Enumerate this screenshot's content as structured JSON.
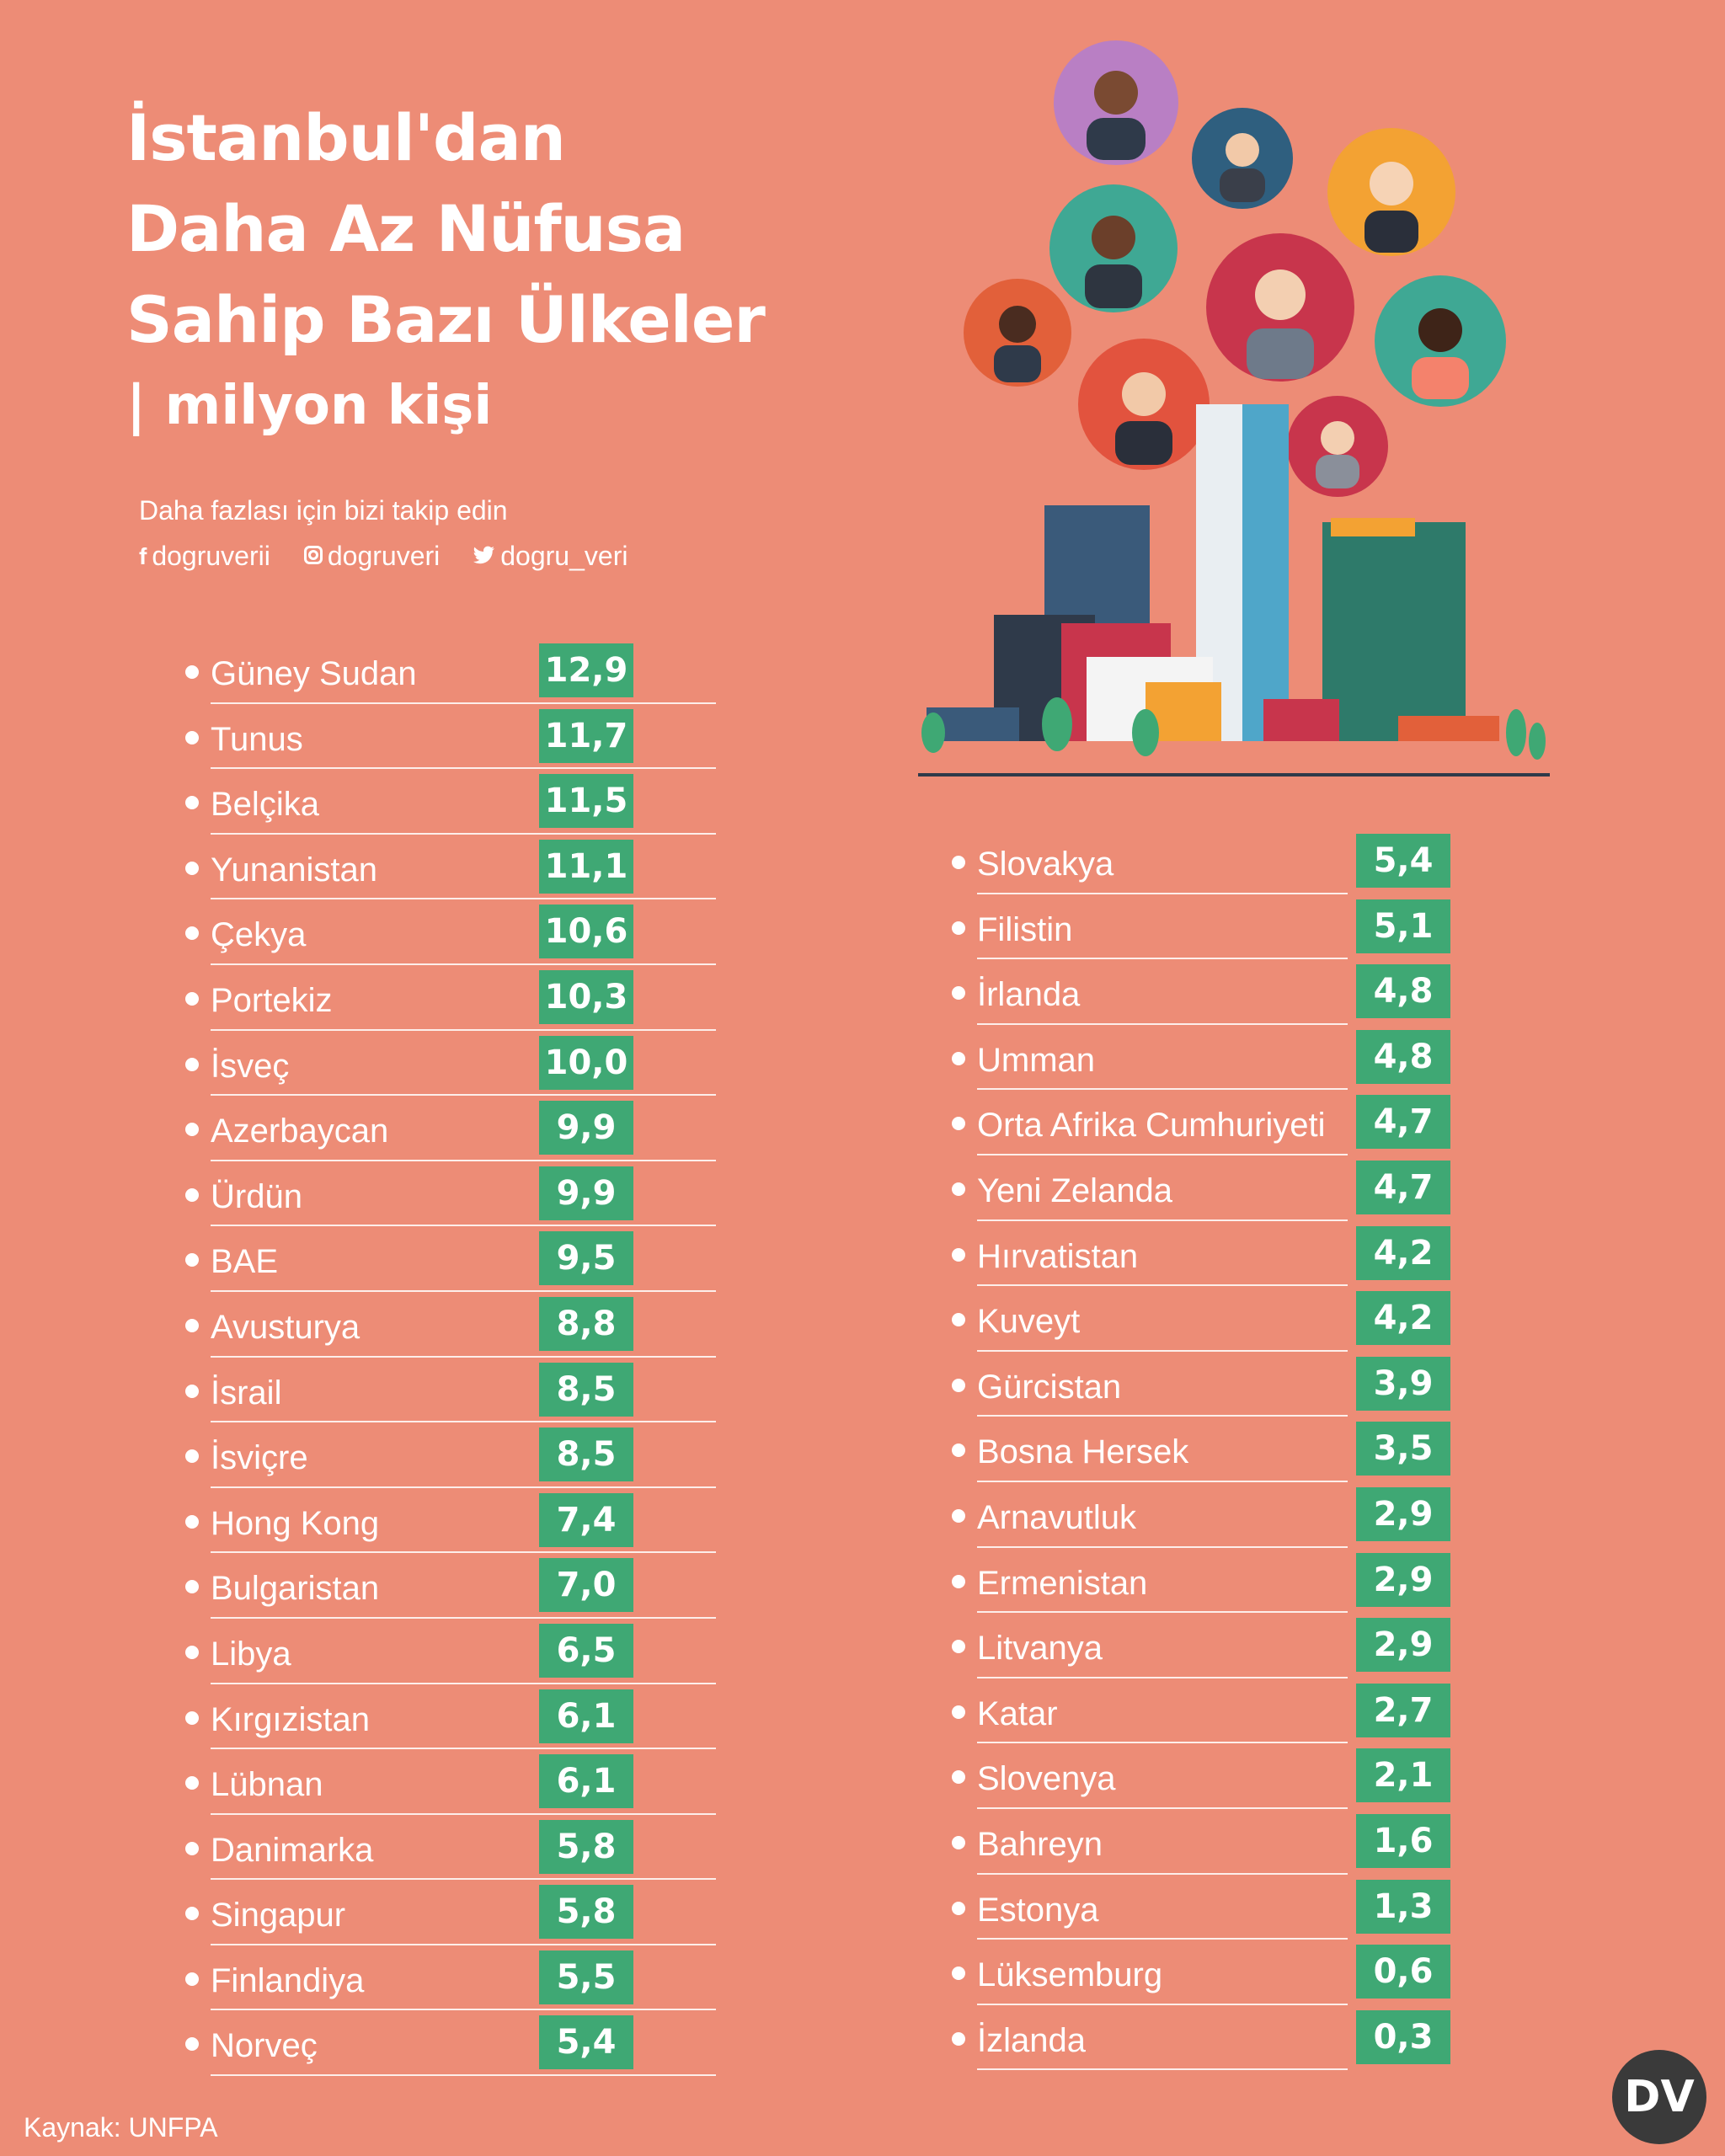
{
  "title": {
    "line1": "İstanbul'dan",
    "line2": "Daha Az Nüfusa",
    "line3": "Sahip Bazı Ülkeler",
    "line4": "| milyon kişi"
  },
  "follow": {
    "text": "Daha fazlası için bizi takip edin",
    "facebook": "dogruverii",
    "instagram": "dogruveri",
    "twitter": "dogru_veri"
  },
  "source": "Kaynak: UNFPA",
  "logo": "DV",
  "colors": {
    "background": "#ED8C76",
    "value_box": "#3FA874",
    "text": "#FFFFFF"
  },
  "chart_data": {
    "type": "table",
    "title": "İstanbul'dan Daha Az Nüfusa Sahip Bazı Ülkeler",
    "unit": "milyon kişi",
    "left": [
      {
        "country": "Güney Sudan",
        "value": "12,9"
      },
      {
        "country": "Tunus",
        "value": "11,7"
      },
      {
        "country": "Belçika",
        "value": "11,5"
      },
      {
        "country": "Yunanistan",
        "value": "11,1"
      },
      {
        "country": "Çekya",
        "value": "10,6"
      },
      {
        "country": "Portekiz",
        "value": "10,3"
      },
      {
        "country": "İsveç",
        "value": "10,0"
      },
      {
        "country": "Azerbaycan",
        "value": "9,9"
      },
      {
        "country": "Ürdün",
        "value": "9,9"
      },
      {
        "country": "BAE",
        "value": "9,5"
      },
      {
        "country": "Avusturya",
        "value": "8,8"
      },
      {
        "country": "İsrail",
        "value": "8,5"
      },
      {
        "country": "İsviçre",
        "value": "8,5"
      },
      {
        "country": "Hong Kong",
        "value": "7,4"
      },
      {
        "country": "Bulgaristan",
        "value": "7,0"
      },
      {
        "country": "Libya",
        "value": "6,5"
      },
      {
        "country": "Kırgızistan",
        "value": "6,1"
      },
      {
        "country": "Lübnan",
        "value": "6,1"
      },
      {
        "country": "Danimarka",
        "value": "5,8"
      },
      {
        "country": "Singapur",
        "value": "5,8"
      },
      {
        "country": "Finlandiya",
        "value": "5,5"
      },
      {
        "country": "Norveç",
        "value": "5,4"
      }
    ],
    "right": [
      {
        "country": "Slovakya",
        "value": "5,4"
      },
      {
        "country": "Filistin",
        "value": "5,1"
      },
      {
        "country": "İrlanda",
        "value": "4,8"
      },
      {
        "country": "Umman",
        "value": "4,8"
      },
      {
        "country": "Orta Afrika Cumhuriyeti",
        "value": "4,7"
      },
      {
        "country": "Yeni Zelanda",
        "value": "4,7"
      },
      {
        "country": "Hırvatistan",
        "value": "4,2"
      },
      {
        "country": "Kuveyt",
        "value": "4,2"
      },
      {
        "country": "Gürcistan",
        "value": "3,9"
      },
      {
        "country": "Bosna Hersek",
        "value": "3,5"
      },
      {
        "country": "Arnavutluk",
        "value": "2,9"
      },
      {
        "country": "Ermenistan",
        "value": "2,9"
      },
      {
        "country": "Litvanya",
        "value": "2,9"
      },
      {
        "country": "Katar",
        "value": "2,7"
      },
      {
        "country": "Slovenya",
        "value": "2,1"
      },
      {
        "country": "Bahreyn",
        "value": "1,6"
      },
      {
        "country": "Estonya",
        "value": "1,3"
      },
      {
        "country": "Lüksemburg",
        "value": "0,6"
      },
      {
        "country": "İzlanda",
        "value": "0,3"
      }
    ]
  }
}
